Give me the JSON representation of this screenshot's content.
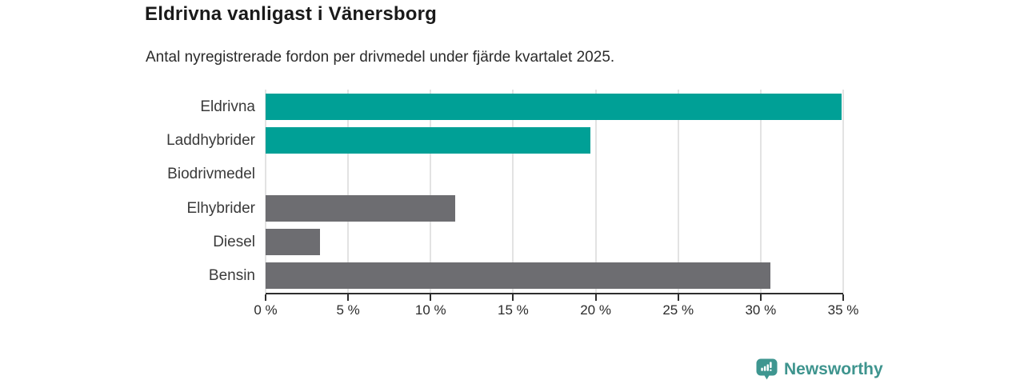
{
  "page": {
    "background": "#ffffff"
  },
  "chart_data": {
    "type": "bar",
    "orientation": "horizontal",
    "title": "Eldrivna vanligast i Vänersborg",
    "subtitle": "Antal nyregistrerade fordon per drivmedel under fjärde kvartalet 2025.",
    "categories": [
      "Eldrivna",
      "Laddhybrider",
      "Biodrivmedel",
      "Elhybrider",
      "Diesel",
      "Bensin"
    ],
    "values": [
      34.9,
      19.7,
      0,
      11.5,
      3.3,
      30.6
    ],
    "unit": "%",
    "bar_colors": [
      "#00a096",
      "#00a096",
      "#6d6d71",
      "#6d6d71",
      "#6d6d71",
      "#6d6d71"
    ],
    "highlight_color": "#00a096",
    "default_color": "#6d6d71",
    "xlim": [
      0,
      35
    ],
    "tick_step": 5,
    "x_ticks": [
      "0 %",
      "5 %",
      "10 %",
      "15 %",
      "20 %",
      "25 %",
      "30 %",
      "35 %"
    ],
    "grid": true,
    "gridline_color": "#e3e3e3",
    "axis_color": "#2e2e2e",
    "legend_position": "none"
  },
  "branding": {
    "logo_text": "Newsworthy",
    "logo_color": "#3e948e",
    "logo_icon": "newsworthy-bubble-bar-chart-icon"
  }
}
